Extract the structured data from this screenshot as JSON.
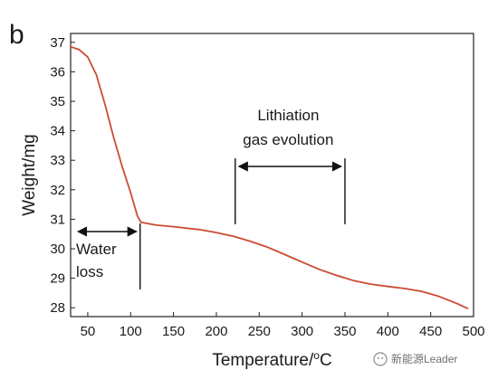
{
  "panel_label": "b",
  "watermark": {
    "icon": "wechat-icon",
    "text": "新能源Leader"
  },
  "chart_data": {
    "type": "line",
    "title": "",
    "xlabel_parts": [
      "Temperature/",
      "o",
      "C"
    ],
    "ylabel": "Weight/mg",
    "xlim": [
      30,
      500
    ],
    "ylim": [
      27.7,
      37.3
    ],
    "xticks": [
      50,
      100,
      150,
      200,
      250,
      300,
      350,
      400,
      450,
      500
    ],
    "yticks": [
      28,
      29,
      30,
      31,
      32,
      33,
      34,
      35,
      36,
      37
    ],
    "grid": false,
    "legend": "none",
    "line_color": "#cc4b32",
    "series": [
      {
        "x": [
          30,
          40,
          50,
          60,
          70,
          80,
          90,
          100,
          108,
          112,
          130,
          150,
          180,
          200,
          220,
          240,
          260,
          280,
          300,
          320,
          340,
          360,
          380,
          400,
          420,
          440,
          460,
          480,
          493
        ],
        "y": [
          36.85,
          36.75,
          36.5,
          35.9,
          34.9,
          33.8,
          32.8,
          31.9,
          31.1,
          30.9,
          30.8,
          30.75,
          30.65,
          30.55,
          30.42,
          30.25,
          30.05,
          29.8,
          29.55,
          29.3,
          29.1,
          28.92,
          28.8,
          28.72,
          28.65,
          28.55,
          28.38,
          28.15,
          27.98
        ]
      }
    ],
    "annotations": [
      {
        "lines": [
          "Lithiation",
          "gas evolution"
        ],
        "x_start": 222,
        "x_end": 350,
        "arrow": "double"
      },
      {
        "lines": [
          "Water",
          "loss"
        ],
        "x_start": 30,
        "x_end": 110,
        "arrow": "double"
      }
    ]
  }
}
